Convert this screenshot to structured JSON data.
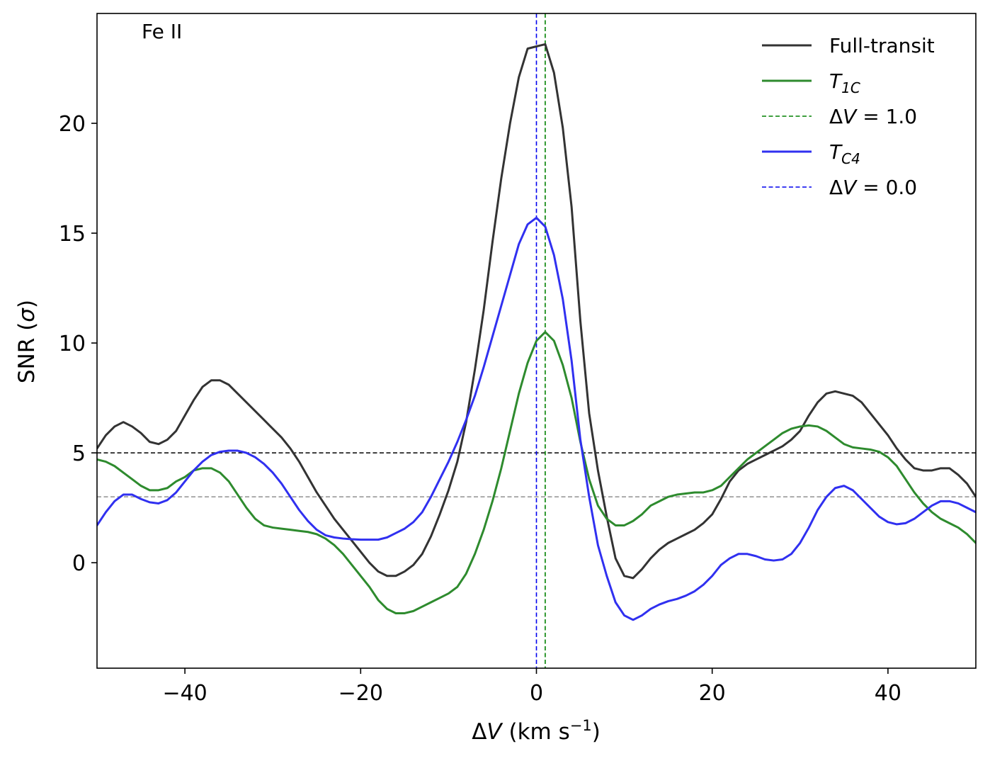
{
  "chart_data": {
    "type": "line",
    "annotation": "Fe II",
    "xlabel": "ΔV (km s⁻¹)",
    "ylabel": "SNR (σ)",
    "xlim": [
      -50,
      50
    ],
    "ylim": [
      -4.8,
      25
    ],
    "xticks": [
      -40,
      -20,
      0,
      20,
      40
    ],
    "xtick_labels": [
      "−40",
      "−20",
      "0",
      "20",
      "40"
    ],
    "yticks": [
      0,
      5,
      10,
      15,
      20
    ],
    "ytick_labels": [
      "0",
      "5",
      "10",
      "15",
      "20"
    ],
    "grid": false,
    "legend_position": "top-right",
    "colors": {
      "full_transit": "#333333",
      "t1c": "#2e8b2e",
      "tc4": "#3030f0",
      "threshold_5": "#000000",
      "threshold_3": "#999999"
    },
    "series": [
      {
        "name": "Full-transit",
        "color": "#333333",
        "x": [
          -50,
          -49,
          -48,
          -47,
          -46,
          -45,
          -44,
          -43,
          -42,
          -41,
          -40,
          -39,
          -38,
          -37,
          -36,
          -35,
          -34,
          -33,
          -32,
          -31,
          -30,
          -29,
          -28,
          -27,
          -26,
          -25,
          -24,
          -23,
          -22,
          -21,
          -20,
          -19,
          -18,
          -17,
          -16,
          -15,
          -14,
          -13,
          -12,
          -11,
          -10,
          -9,
          -8,
          -7,
          -6,
          -5,
          -4,
          -3,
          -2,
          -1,
          0,
          1,
          2,
          3,
          4,
          5,
          6,
          7,
          8,
          9,
          10,
          11,
          12,
          13,
          14,
          15,
          16,
          17,
          18,
          19,
          20,
          21,
          22,
          23,
          24,
          25,
          26,
          27,
          28,
          29,
          30,
          31,
          32,
          33,
          34,
          35,
          36,
          37,
          38,
          39,
          40,
          41,
          42,
          43,
          44,
          45,
          46,
          47,
          48,
          49,
          50
        ],
        "y": [
          5.2,
          5.8,
          6.2,
          6.4,
          6.2,
          5.9,
          5.5,
          5.4,
          5.6,
          6.0,
          6.7,
          7.4,
          8.0,
          8.3,
          8.3,
          8.1,
          7.7,
          7.3,
          6.9,
          6.5,
          6.1,
          5.7,
          5.2,
          4.6,
          3.9,
          3.2,
          2.6,
          2.0,
          1.5,
          1.0,
          0.5,
          0.0,
          -0.4,
          -0.6,
          -0.6,
          -0.4,
          -0.1,
          0.4,
          1.2,
          2.2,
          3.3,
          4.6,
          6.4,
          8.8,
          11.5,
          14.6,
          17.5,
          20.0,
          22.1,
          23.4,
          23.5,
          23.6,
          22.3,
          19.8,
          16.2,
          11.0,
          6.8,
          4.2,
          2.1,
          0.2,
          -0.6,
          -0.7,
          -0.3,
          0.2,
          0.6,
          0.9,
          1.1,
          1.3,
          1.5,
          1.8,
          2.2,
          2.9,
          3.7,
          4.2,
          4.5,
          4.7,
          4.9,
          5.1,
          5.3,
          5.6,
          6.0,
          6.7,
          7.3,
          7.7,
          7.8,
          7.7,
          7.6,
          7.3,
          6.8,
          6.3,
          5.8,
          5.2,
          4.7,
          4.3,
          4.2,
          4.2,
          4.3,
          4.3,
          4.0,
          3.6,
          3.0
        ]
      },
      {
        "name": "T_1C",
        "color": "#2e8b2e",
        "x": [
          -50,
          -49,
          -48,
          -47,
          -46,
          -45,
          -44,
          -43,
          -42,
          -41,
          -40,
          -39,
          -38,
          -37,
          -36,
          -35,
          -34,
          -33,
          -32,
          -31,
          -30,
          -29,
          -28,
          -27,
          -26,
          -25,
          -24,
          -23,
          -22,
          -21,
          -20,
          -19,
          -18,
          -17,
          -16,
          -15,
          -14,
          -13,
          -12,
          -11,
          -10,
          -9,
          -8,
          -7,
          -6,
          -5,
          -4,
          -3,
          -2,
          -1,
          0,
          1,
          2,
          3,
          4,
          5,
          6,
          7,
          8,
          9,
          10,
          11,
          12,
          13,
          14,
          15,
          16,
          17,
          18,
          19,
          20,
          21,
          22,
          23,
          24,
          25,
          26,
          27,
          28,
          29,
          30,
          31,
          32,
          33,
          34,
          35,
          36,
          37,
          38,
          39,
          40,
          41,
          42,
          43,
          44,
          45,
          46,
          47,
          48,
          49,
          50
        ],
        "y": [
          4.7,
          4.6,
          4.4,
          4.1,
          3.8,
          3.5,
          3.3,
          3.3,
          3.4,
          3.7,
          3.9,
          4.2,
          4.3,
          4.3,
          4.1,
          3.7,
          3.1,
          2.5,
          2.0,
          1.7,
          1.6,
          1.55,
          1.5,
          1.45,
          1.4,
          1.3,
          1.1,
          0.8,
          0.4,
          -0.1,
          -0.6,
          -1.1,
          -1.7,
          -2.1,
          -2.3,
          -2.3,
          -2.2,
          -2.0,
          -1.8,
          -1.6,
          -1.4,
          -1.1,
          -0.5,
          0.4,
          1.5,
          2.8,
          4.3,
          6.0,
          7.7,
          9.1,
          10.1,
          10.5,
          10.1,
          9.0,
          7.5,
          5.5,
          3.8,
          2.6,
          2.0,
          1.7,
          1.7,
          1.9,
          2.2,
          2.6,
          2.8,
          3.0,
          3.1,
          3.15,
          3.2,
          3.2,
          3.3,
          3.5,
          3.9,
          4.3,
          4.7,
          5.0,
          5.3,
          5.6,
          5.9,
          6.1,
          6.2,
          6.25,
          6.2,
          6.0,
          5.7,
          5.4,
          5.25,
          5.2,
          5.15,
          5.05,
          4.8,
          4.4,
          3.8,
          3.2,
          2.7,
          2.3,
          2.0,
          1.8,
          1.6,
          1.3,
          0.9
        ]
      },
      {
        "name": "T_C4",
        "color": "#3030f0",
        "x": [
          -50,
          -49,
          -48,
          -47,
          -46,
          -45,
          -44,
          -43,
          -42,
          -41,
          -40,
          -39,
          -38,
          -37,
          -36,
          -35,
          -34,
          -33,
          -32,
          -31,
          -30,
          -29,
          -28,
          -27,
          -26,
          -25,
          -24,
          -23,
          -22,
          -21,
          -20,
          -19,
          -18,
          -17,
          -16,
          -15,
          -14,
          -13,
          -12,
          -11,
          -10,
          -9,
          -8,
          -7,
          -6,
          -5,
          -4,
          -3,
          -2,
          -1,
          0,
          1,
          2,
          3,
          4,
          5,
          6,
          7,
          8,
          9,
          10,
          11,
          12,
          13,
          14,
          15,
          16,
          17,
          18,
          19,
          20,
          21,
          22,
          23,
          24,
          25,
          26,
          27,
          28,
          29,
          30,
          31,
          32,
          33,
          34,
          35,
          36,
          37,
          38,
          39,
          40,
          41,
          42,
          43,
          44,
          45,
          46,
          47,
          48,
          49,
          50
        ],
        "y": [
          1.7,
          2.3,
          2.8,
          3.1,
          3.1,
          2.9,
          2.75,
          2.7,
          2.85,
          3.2,
          3.7,
          4.2,
          4.6,
          4.9,
          5.05,
          5.1,
          5.1,
          5.0,
          4.8,
          4.5,
          4.1,
          3.6,
          3.0,
          2.4,
          1.9,
          1.5,
          1.25,
          1.15,
          1.1,
          1.07,
          1.05,
          1.05,
          1.05,
          1.15,
          1.35,
          1.55,
          1.85,
          2.3,
          3.0,
          3.8,
          4.6,
          5.5,
          6.5,
          7.6,
          8.9,
          10.3,
          11.7,
          13.1,
          14.5,
          15.4,
          15.7,
          15.3,
          14.0,
          12.0,
          9.2,
          5.6,
          3.0,
          0.8,
          -0.6,
          -1.8,
          -2.4,
          -2.6,
          -2.4,
          -2.1,
          -1.9,
          -1.75,
          -1.65,
          -1.5,
          -1.3,
          -1.0,
          -0.6,
          -0.1,
          0.2,
          0.4,
          0.4,
          0.3,
          0.15,
          0.1,
          0.15,
          0.4,
          0.9,
          1.6,
          2.4,
          3.0,
          3.4,
          3.5,
          3.3,
          2.9,
          2.5,
          2.1,
          1.85,
          1.75,
          1.8,
          2.0,
          2.3,
          2.6,
          2.8,
          2.8,
          2.7,
          2.5,
          2.3
        ]
      }
    ],
    "vlines": [
      {
        "name": "ΔV = 1.0",
        "x": 1.0,
        "color": "#008000",
        "style": "dashed"
      },
      {
        "name": "ΔV = 0.0",
        "x": 0.0,
        "color": "#0000ee",
        "style": "dashed"
      }
    ],
    "hlines": [
      {
        "y": 5,
        "color": "#000000",
        "style": "dashed"
      },
      {
        "y": 3,
        "color": "#999999",
        "style": "dashed"
      }
    ],
    "legend": [
      {
        "label": "Full-transit",
        "color": "#333333",
        "style": "solid"
      },
      {
        "label_main": "T",
        "label_sub": "1C",
        "color": "#2e8b2e",
        "style": "solid"
      },
      {
        "label": "ΔV = 1.0",
        "color": "#008000",
        "style": "dashed"
      },
      {
        "label_main": "T",
        "label_sub": "C4",
        "color": "#3030f0",
        "style": "solid"
      },
      {
        "label": "ΔV = 0.0",
        "color": "#0000ee",
        "style": "dashed"
      }
    ]
  }
}
